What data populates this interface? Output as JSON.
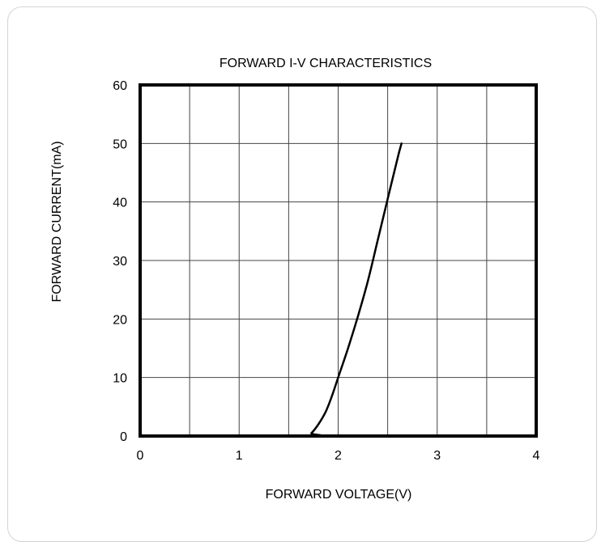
{
  "chart_data": {
    "type": "line",
    "title": "FORWARD I-V CHARACTERISTICS",
    "xlabel": "FORWARD VOLTAGE(V)",
    "ylabel": "FORWARD CURRENT(mA)",
    "xlim": [
      0,
      4
    ],
    "ylim": [
      0,
      60
    ],
    "xticks": [
      0,
      0.5,
      1,
      1.5,
      2,
      2.5,
      3,
      3.5,
      4
    ],
    "yticks": [
      0,
      10,
      20,
      30,
      40,
      50,
      60
    ],
    "xtick_labels": [
      "0",
      "1",
      "2",
      "3",
      "4"
    ],
    "ytick_labels": [
      "0",
      "10",
      "20",
      "30",
      "40",
      "50",
      "60"
    ],
    "grid": true,
    "legend": "none",
    "series": [
      {
        "x": [
          0,
          1.68,
          1.73,
          1.8,
          1.87,
          1.93,
          2.0,
          2.1,
          2.2,
          2.3,
          2.4,
          2.5,
          2.6,
          2.64
        ],
        "y": [
          0,
          0,
          0.5,
          2,
          4,
          6.5,
          10,
          15,
          20.5,
          26.5,
          33.5,
          40.5,
          47.5,
          50
        ],
        "color": "#000000"
      }
    ]
  }
}
